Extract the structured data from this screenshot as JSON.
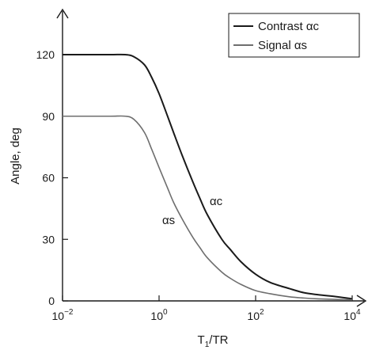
{
  "chart_data": {
    "type": "line",
    "title": "",
    "xlabel_main": "T",
    "xlabel_sub": "1",
    "xlabel_rest": "/TR",
    "ylabel": "Angle, deg",
    "x_scale": "log",
    "xlim": [
      0.01,
      10000
    ],
    "ylim": [
      0,
      120
    ],
    "x_ticks": [
      {
        "base": "10",
        "exp": "−2",
        "value": 0.01
      },
      {
        "base": "10",
        "exp": "0",
        "value": 1
      },
      {
        "base": "10",
        "exp": "2",
        "value": 100
      },
      {
        "base": "10",
        "exp": "4",
        "value": 10000
      }
    ],
    "y_ticks": [
      "0",
      "30",
      "60",
      "90",
      "120"
    ],
    "grid": false,
    "legend_position": "top-right",
    "series": [
      {
        "name": "Contrast αc",
        "color": "#1a1a1a",
        "label": "αc",
        "x": [
          0.01,
          0.03,
          0.1,
          0.2,
          0.3,
          0.5,
          0.7,
          1,
          1.5,
          2,
          3,
          5,
          7,
          10,
          20,
          30,
          50,
          100,
          200,
          500,
          1000,
          2000,
          5000,
          10000
        ],
        "values": [
          120,
          120,
          120,
          120,
          119,
          115,
          109,
          101,
          90,
          82,
          71,
          58,
          50,
          42,
          30,
          25,
          19,
          13,
          9,
          6,
          4,
          3,
          2,
          1
        ]
      },
      {
        "name": "Signal αs",
        "color": "#6e6e6e",
        "label": "αs",
        "x": [
          0.01,
          0.03,
          0.1,
          0.2,
          0.3,
          0.5,
          0.7,
          1,
          1.5,
          2,
          3,
          5,
          7,
          10,
          20,
          30,
          50,
          100,
          200,
          500,
          1000,
          2000,
          5000,
          10000
        ],
        "values": [
          90,
          90,
          90,
          90,
          88.5,
          82,
          74,
          65,
          55,
          48,
          40,
          31,
          26,
          21,
          14,
          11,
          8,
          5,
          3.5,
          2,
          1.4,
          1,
          0.7,
          0.5
        ]
      }
    ]
  }
}
